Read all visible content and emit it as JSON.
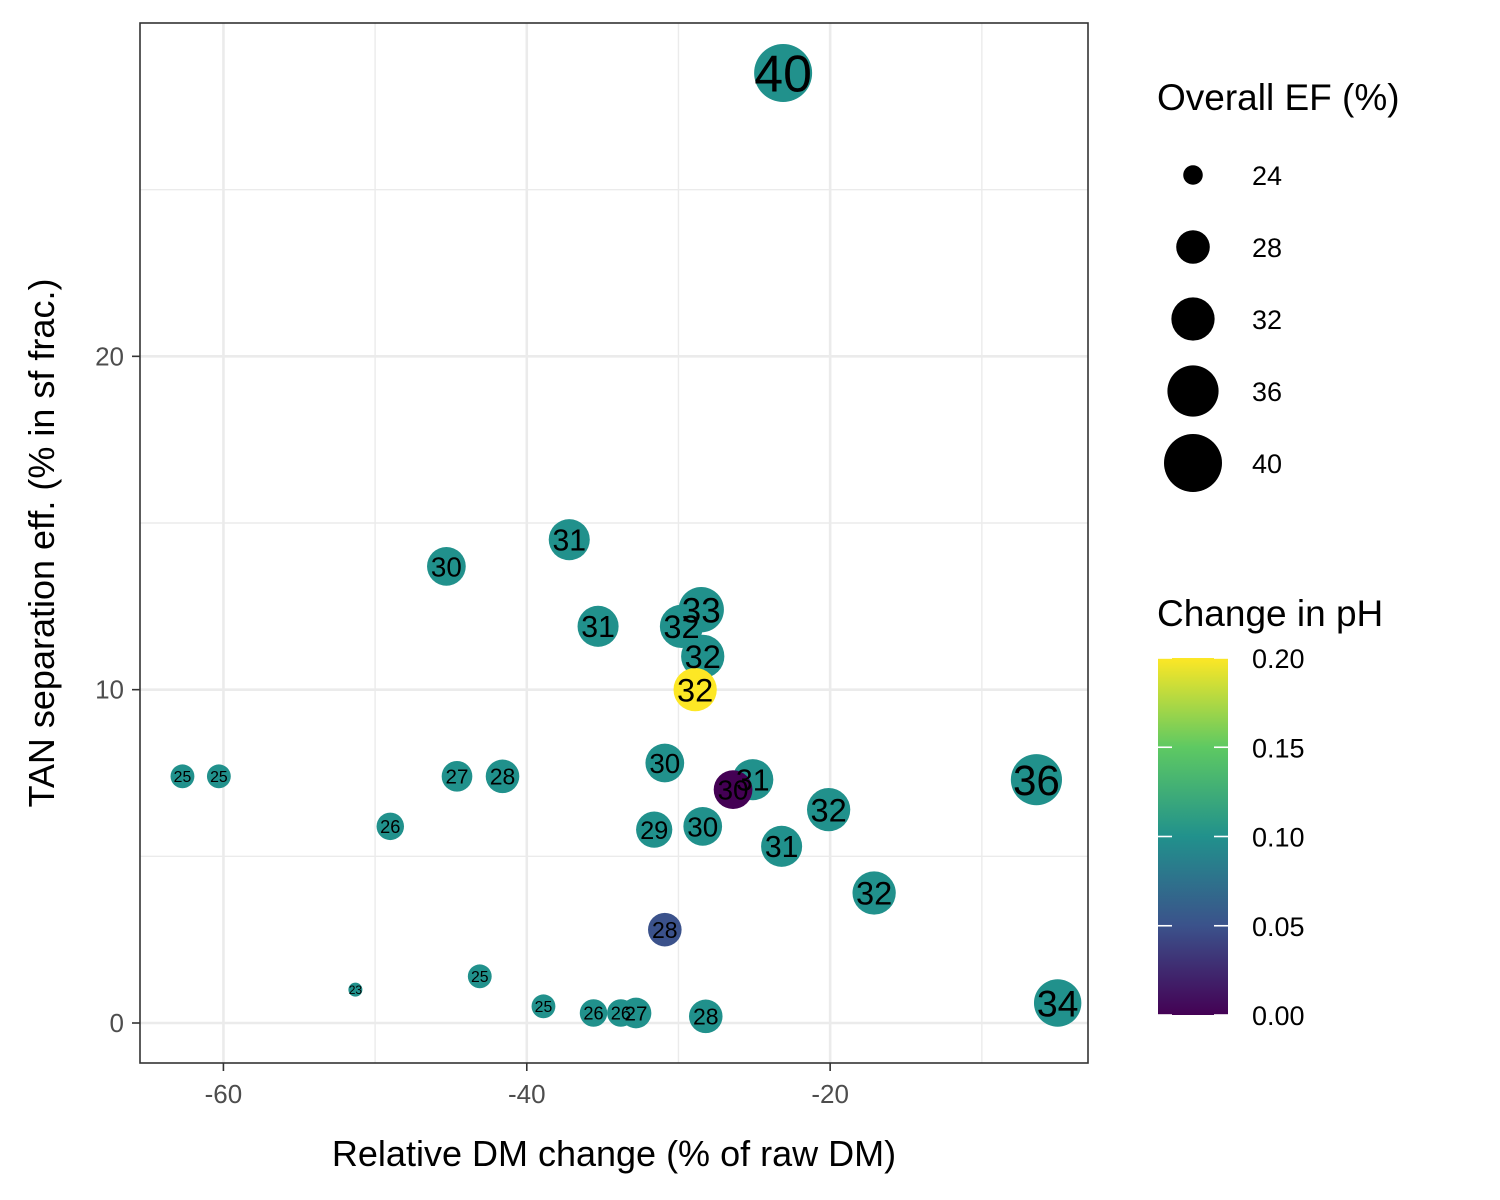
{
  "chart_data": {
    "type": "scatter",
    "xlabel": "Relative DM change (% of raw DM)",
    "ylabel": "TAN separation eff. (% in sf frac.)",
    "xlim": [
      -65.5,
      -3
    ],
    "ylim": [
      -1.2,
      30
    ],
    "x_ticks": [
      -60,
      -40,
      -20
    ],
    "y_ticks": [
      0,
      10,
      20
    ],
    "grid": true,
    "legend_placement": "right",
    "size_legend": {
      "title": "Overall EF (%)",
      "entries": [
        24,
        28,
        32,
        36,
        40
      ]
    },
    "color_legend": {
      "title": "Change in pH",
      "ticks": [
        0.2,
        0.15,
        0.1,
        0.05,
        0.0
      ],
      "tick_labels": [
        "0.20",
        "0.15",
        "0.10",
        "0.05",
        "0.00"
      ],
      "range": [
        0,
        0.2
      ],
      "colors": [
        "#440154",
        "#3b528b",
        "#21918c",
        "#5ec962",
        "#fde725"
      ]
    },
    "points": [
      {
        "x": -23.1,
        "y": 28.5,
        "ef": 40,
        "ph": 0.1
      },
      {
        "x": -37.2,
        "y": 14.5,
        "ef": 31,
        "ph": 0.1
      },
      {
        "x": -45.3,
        "y": 13.7,
        "ef": 30,
        "ph": 0.1
      },
      {
        "x": -35.3,
        "y": 11.9,
        "ef": 31,
        "ph": 0.1
      },
      {
        "x": -28.5,
        "y": 12.4,
        "ef": 33,
        "ph": 0.1
      },
      {
        "x": -29.8,
        "y": 11.9,
        "ef": 32,
        "ph": 0.1
      },
      {
        "x": -28.4,
        "y": 11.0,
        "ef": 32,
        "ph": 0.1
      },
      {
        "x": -28.9,
        "y": 10.0,
        "ef": 32,
        "ph": 0.2
      },
      {
        "x": -62.7,
        "y": 7.4,
        "ef": 25,
        "ph": 0.1
      },
      {
        "x": -60.3,
        "y": 7.4,
        "ef": 25,
        "ph": 0.1
      },
      {
        "x": -44.6,
        "y": 7.4,
        "ef": 27,
        "ph": 0.1
      },
      {
        "x": -41.6,
        "y": 7.4,
        "ef": 28,
        "ph": 0.1
      },
      {
        "x": -30.9,
        "y": 7.8,
        "ef": 30,
        "ph": 0.1
      },
      {
        "x": -25.1,
        "y": 7.3,
        "ef": 31,
        "ph": 0.1
      },
      {
        "x": -26.4,
        "y": 7.0,
        "ef": 30,
        "ph": 0.0
      },
      {
        "x": -6.4,
        "y": 7.3,
        "ef": 36,
        "ph": 0.1
      },
      {
        "x": -20.1,
        "y": 6.4,
        "ef": 32,
        "ph": 0.1
      },
      {
        "x": -49.0,
        "y": 5.9,
        "ef": 26,
        "ph": 0.1
      },
      {
        "x": -31.6,
        "y": 5.8,
        "ef": 29,
        "ph": 0.1
      },
      {
        "x": -28.4,
        "y": 5.9,
        "ef": 30,
        "ph": 0.1
      },
      {
        "x": -23.2,
        "y": 5.3,
        "ef": 31,
        "ph": 0.1
      },
      {
        "x": -17.1,
        "y": 3.9,
        "ef": 32,
        "ph": 0.1
      },
      {
        "x": -30.9,
        "y": 2.8,
        "ef": 28,
        "ph": 0.05
      },
      {
        "x": -51.3,
        "y": 1.0,
        "ef": 23,
        "ph": 0.1
      },
      {
        "x": -43.1,
        "y": 1.4,
        "ef": 25,
        "ph": 0.1
      },
      {
        "x": -38.9,
        "y": 0.5,
        "ef": 25,
        "ph": 0.1
      },
      {
        "x": -35.6,
        "y": 0.3,
        "ef": 26,
        "ph": 0.1
      },
      {
        "x": -33.8,
        "y": 0.3,
        "ef": 26,
        "ph": 0.1
      },
      {
        "x": -32.8,
        "y": 0.3,
        "ef": 27,
        "ph": 0.1
      },
      {
        "x": -28.2,
        "y": 0.2,
        "ef": 28,
        "ph": 0.1
      },
      {
        "x": -5.0,
        "y": 0.6,
        "ef": 34,
        "ph": 0.1
      }
    ]
  }
}
